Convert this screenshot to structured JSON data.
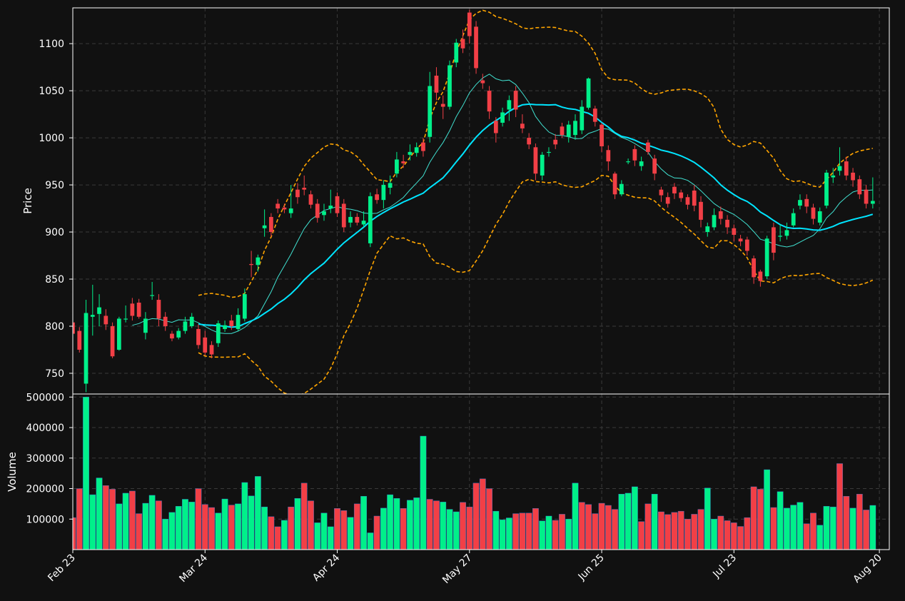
{
  "chart_data": {
    "type": "candlestick",
    "price_panel": {
      "ylabel": "Price",
      "ylim": [
        728,
        1138
      ],
      "yticks": [
        750,
        800,
        850,
        900,
        950,
        1000,
        1050,
        1100
      ],
      "overlays": [
        {
          "role": "short moving average",
          "color": "#40E0D0",
          "style": "solid-thin"
        },
        {
          "role": "long moving average",
          "color": "#00E5FF",
          "style": "solid"
        },
        {
          "role": "bollinger bands",
          "color": "#FFA500",
          "style": "dashed"
        }
      ]
    },
    "volume_panel": {
      "ylabel": "Volume",
      "ylim": [
        0,
        510000
      ],
      "yticks": [
        100000,
        200000,
        300000,
        400000,
        500000
      ]
    },
    "xlim": [
      0,
      123.5
    ],
    "xticks": [
      {
        "label": "Feb 23",
        "index": 0
      },
      {
        "label": "Mar 24",
        "index": 20
      },
      {
        "label": "Apr 24",
        "index": 40
      },
      {
        "label": "May 27",
        "index": 60
      },
      {
        "label": "Jun 25",
        "index": 80
      },
      {
        "label": "Jul 23",
        "index": 100
      },
      {
        "label": "Aug 20",
        "index": 122
      }
    ],
    "up_color": "#00F08A",
    "down_color": "#F23F46",
    "grid": true,
    "candles": [
      [
        804,
        792,
        807,
        789
      ],
      [
        795,
        775,
        799,
        772
      ],
      [
        739,
        814,
        828,
        730
      ],
      [
        810,
        812,
        844,
        790
      ],
      [
        813,
        820,
        834,
        800
      ],
      [
        811,
        802,
        818,
        796
      ],
      [
        800,
        768,
        804,
        766
      ],
      [
        775,
        808,
        810,
        774
      ],
      [
        808,
        808,
        822,
        804
      ],
      [
        824,
        811,
        830,
        806
      ],
      [
        825,
        810,
        829,
        808
      ],
      [
        793,
        808,
        815,
        786
      ],
      [
        833,
        833,
        847,
        828
      ],
      [
        828,
        808,
        834,
        800
      ],
      [
        810,
        800,
        815,
        795
      ],
      [
        792,
        787,
        795,
        784
      ],
      [
        788,
        795,
        798,
        786
      ],
      [
        795,
        805,
        810,
        792
      ],
      [
        800,
        810,
        814,
        798
      ],
      [
        797,
        780,
        802,
        776
      ],
      [
        788,
        772,
        795,
        769
      ],
      [
        780,
        770,
        784,
        766
      ],
      [
        782,
        803,
        806,
        778
      ],
      [
        797,
        801,
        806,
        794
      ],
      [
        806,
        800,
        812,
        796
      ],
      [
        797,
        812,
        819,
        795
      ],
      [
        808,
        834,
        840,
        805
      ],
      [
        866,
        865,
        880,
        852
      ],
      [
        865,
        873,
        876,
        858
      ],
      [
        904,
        907,
        924,
        895
      ],
      [
        916,
        900,
        920,
        895
      ],
      [
        930,
        925,
        935,
        920
      ],
      [
        926,
        924,
        930,
        920
      ],
      [
        920,
        925,
        950,
        915
      ],
      [
        945,
        937,
        952,
        930
      ],
      [
        947,
        945,
        960,
        939
      ],
      [
        940,
        929,
        944,
        925
      ],
      [
        930,
        915,
        935,
        910
      ],
      [
        918,
        922,
        930,
        912
      ],
      [
        925,
        928,
        945,
        920
      ],
      [
        938,
        920,
        942,
        916
      ],
      [
        930,
        905,
        935,
        900
      ],
      [
        910,
        916,
        922,
        905
      ],
      [
        916,
        910,
        920,
        907
      ],
      [
        908,
        912,
        922,
        905
      ],
      [
        888,
        938,
        942,
        884
      ],
      [
        940,
        934,
        946,
        930
      ],
      [
        934,
        950,
        955,
        925
      ],
      [
        947,
        952,
        960,
        940
      ],
      [
        962,
        977,
        985,
        958
      ],
      [
        975,
        973,
        982,
        968
      ],
      [
        982,
        985,
        993,
        976
      ],
      [
        984,
        990,
        995,
        980
      ],
      [
        995,
        986,
        1000,
        980
      ],
      [
        1001,
        1055,
        1070,
        995
      ],
      [
        1066,
        1048,
        1075,
        1040
      ],
      [
        1036,
        1033,
        1045,
        1020
      ],
      [
        1033,
        1077,
        1082,
        1030
      ],
      [
        1080,
        1101,
        1105,
        1075
      ],
      [
        1105,
        1095,
        1115,
        1090
      ],
      [
        1133,
        1108,
        1136,
        1100
      ],
      [
        1118,
        1074,
        1124,
        1068
      ],
      [
        1061,
        1058,
        1068,
        1052
      ],
      [
        1050,
        1028,
        1055,
        1020
      ],
      [
        1018,
        1005,
        1022,
        995
      ],
      [
        1016,
        1027,
        1032,
        1012
      ],
      [
        1030,
        1040,
        1045,
        1018
      ],
      [
        1050,
        1030,
        1055,
        1022
      ],
      [
        1015,
        1010,
        1025,
        1005
      ],
      [
        1000,
        993,
        1005,
        988
      ],
      [
        990,
        962,
        994,
        955
      ],
      [
        960,
        982,
        985,
        955
      ],
      [
        985,
        985,
        990,
        980
      ],
      [
        998,
        993,
        1004,
        988
      ],
      [
        1012,
        1003,
        1016,
        1000
      ],
      [
        1001,
        1014,
        1018,
        995
      ],
      [
        1003,
        1018,
        1025,
        998
      ],
      [
        1008,
        1033,
        1040,
        1004
      ],
      [
        1032,
        1063,
        1064,
        1030
      ],
      [
        1031,
        1017,
        1034,
        1012
      ],
      [
        1014,
        991,
        1016,
        985
      ],
      [
        987,
        975,
        992,
        965
      ],
      [
        962,
        940,
        964,
        935
      ],
      [
        940,
        951,
        955,
        938
      ],
      [
        975,
        975,
        978,
        972
      ],
      [
        988,
        976,
        992,
        970
      ],
      [
        970,
        975,
        980,
        965
      ],
      [
        995,
        985,
        998,
        982
      ],
      [
        978,
        962,
        982,
        955
      ],
      [
        945,
        939,
        948,
        932
      ],
      [
        937,
        930,
        942,
        926
      ],
      [
        948,
        941,
        952,
        935
      ],
      [
        942,
        936,
        945,
        932
      ],
      [
        937,
        929,
        940,
        924
      ],
      [
        944,
        928,
        950,
        922
      ],
      [
        932,
        913,
        938,
        905
      ],
      [
        900,
        906,
        910,
        895
      ],
      [
        905,
        918,
        925,
        902
      ],
      [
        922,
        914,
        927,
        908
      ],
      [
        913,
        905,
        918,
        898
      ],
      [
        904,
        897,
        908,
        890
      ],
      [
        893,
        890,
        897,
        885
      ],
      [
        892,
        880,
        895,
        875
      ],
      [
        872,
        852,
        875,
        845
      ],
      [
        858,
        848,
        860,
        842
      ],
      [
        853,
        893,
        896,
        850
      ],
      [
        905,
        878,
        910,
        870
      ],
      [
        895,
        896,
        908,
        890
      ],
      [
        896,
        902,
        910,
        892
      ],
      [
        907,
        920,
        925,
        905
      ],
      [
        928,
        934,
        940,
        924
      ],
      [
        935,
        927,
        940,
        920
      ],
      [
        926,
        914,
        930,
        908
      ],
      [
        910,
        922,
        926,
        907
      ],
      [
        928,
        963,
        966,
        925
      ],
      [
        958,
        960,
        968,
        952
      ],
      [
        965,
        970,
        990,
        960
      ],
      [
        975,
        960,
        980,
        955
      ],
      [
        963,
        955,
        968,
        948
      ],
      [
        956,
        940,
        960,
        935
      ],
      [
        945,
        930,
        950,
        925
      ],
      [
        930,
        933,
        958,
        925
      ]
    ],
    "volume": [
      105000,
      200000,
      500000,
      180000,
      235000,
      210000,
      198000,
      150000,
      185000,
      192000,
      118000,
      152000,
      178000,
      160000,
      100000,
      122000,
      142000,
      165000,
      156000,
      200000,
      148000,
      138000,
      120000,
      166000,
      146000,
      150000,
      220000,
      176000,
      240000,
      140000,
      108000,
      75000,
      96000,
      140000,
      168000,
      218000,
      160000,
      88000,
      120000,
      75000,
      135000,
      128000,
      106000,
      150000,
      175000,
      55000,
      110000,
      136000,
      180000,
      168000,
      135000,
      162000,
      170000,
      372000,
      165000,
      160000,
      156000,
      132000,
      124000,
      155000,
      140000,
      218000,
      232000,
      200000,
      126000,
      98000,
      104000,
      118000,
      120000,
      120000,
      135000,
      94000,
      110000,
      96000,
      116000,
      100000,
      218000,
      155000,
      148000,
      118000,
      152000,
      145000,
      132000,
      182000,
      185000,
      206000,
      92000,
      150000,
      182000,
      124000,
      115000,
      122000,
      126000,
      100000,
      116000,
      132000,
      202000,
      100000,
      110000,
      95000,
      88000,
      76000,
      105000,
      206000,
      198000,
      262000,
      138000,
      190000,
      136000,
      146000,
      155000,
      85000,
      120000,
      80000,
      142000,
      140000,
      282000,
      175000,
      136000,
      182000,
      130000,
      145000
    ],
    "volume_up": [
      false,
      false,
      true,
      true,
      true,
      false,
      false,
      true,
      true,
      false,
      false,
      true,
      true,
      false,
      true,
      true,
      true,
      true,
      true,
      false,
      false,
      false,
      true,
      true,
      false,
      true,
      true,
      true,
      true,
      true,
      false,
      false,
      true,
      false,
      true,
      false,
      false,
      true,
      true,
      true,
      false,
      false,
      true,
      false,
      true,
      true,
      false,
      true,
      true,
      true,
      false,
      true,
      true,
      true,
      false,
      false,
      true,
      true,
      true,
      false,
      false,
      false,
      false,
      false,
      true,
      true,
      true,
      false,
      false,
      false,
      false,
      true,
      true,
      false,
      false,
      true,
      true,
      false,
      false,
      false,
      false,
      false,
      false,
      true,
      true,
      true,
      false,
      false,
      true,
      false,
      false,
      false,
      false,
      false,
      false,
      false,
      true,
      true,
      false,
      false,
      false,
      false,
      false,
      false,
      false,
      true,
      false,
      true,
      true,
      true,
      true,
      false,
      false,
      true,
      true,
      true,
      false,
      false,
      true,
      false,
      false,
      true
    ]
  }
}
